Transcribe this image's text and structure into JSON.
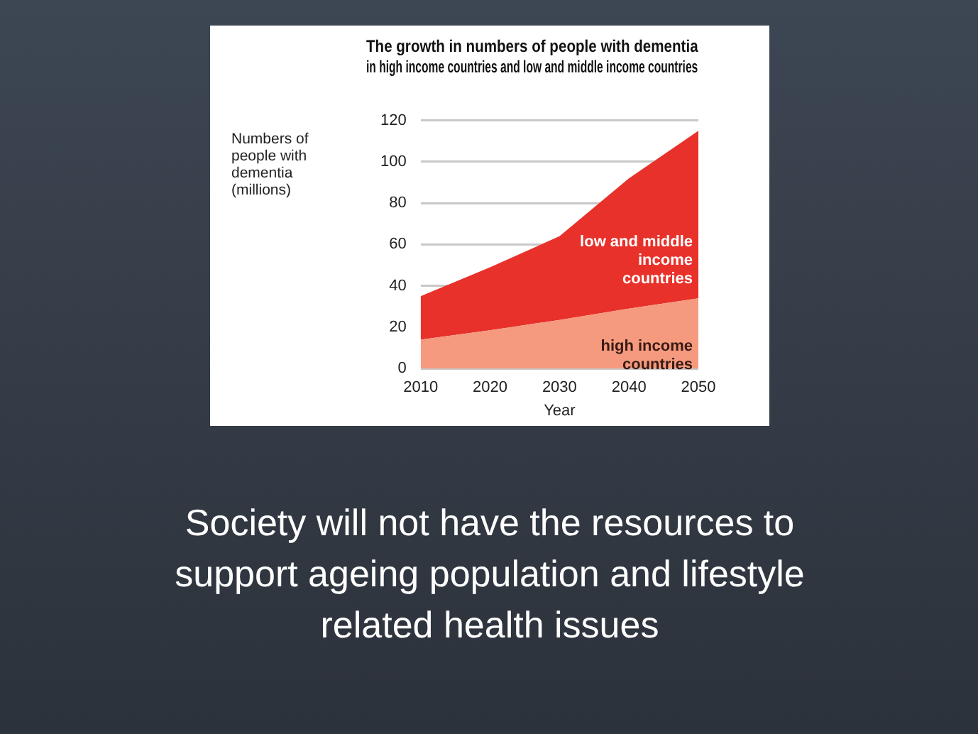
{
  "chart_data": {
    "type": "area",
    "title": "The growth in numbers of people with dementia\nin high income countries and low and middle income countries",
    "ylabel": "Numbers of people with dementia (millions)",
    "xlabel": "Year",
    "x": [
      2010,
      2020,
      2030,
      2040,
      2050
    ],
    "stacked": true,
    "grid": "y",
    "xlim": [
      2010,
      2050
    ],
    "xticks": [
      2010,
      2020,
      2030,
      2040,
      2050
    ],
    "ylim": [
      0,
      120
    ],
    "yticks": [
      0,
      20,
      40,
      60,
      80,
      100,
      120
    ],
    "series": [
      {
        "name": "high income countries",
        "color": "#f59a7e",
        "values": [
          14,
          18.5,
          23.5,
          29,
          34
        ]
      },
      {
        "name": "low and middle income countries",
        "color": "#e8312a",
        "values": [
          21,
          30.5,
          40.5,
          63,
          81
        ]
      }
    ],
    "annotations": [
      "Society will not have the resources to support ageing population and lifestyle related health issues"
    ]
  }
}
